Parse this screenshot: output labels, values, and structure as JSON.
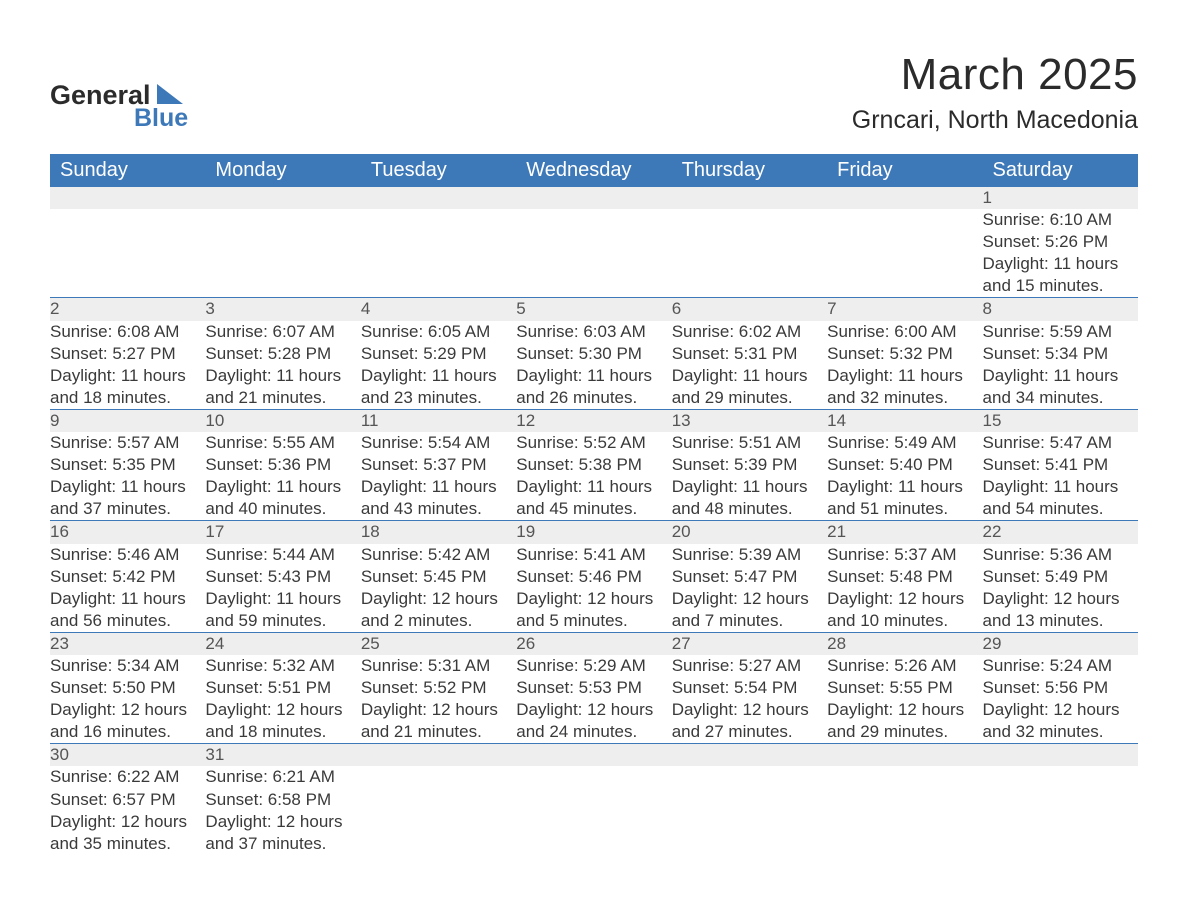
{
  "brand": {
    "text_general": "General",
    "text_blue": "Blue",
    "color_general": "#2b2b2b",
    "color_blue": "#3d78b8"
  },
  "header": {
    "title": "March 2025",
    "subtitle": "Grncari, North Macedonia"
  },
  "calendar": {
    "header_bg": "#3d78b8",
    "header_fg": "#ffffff",
    "daynum_bg": "#eeeeee",
    "rule_color": "#3d78b8",
    "columns": [
      "Sunday",
      "Monday",
      "Tuesday",
      "Wednesday",
      "Thursday",
      "Friday",
      "Saturday"
    ],
    "weeks": [
      {
        "nums": [
          "",
          "",
          "",
          "",
          "",
          "",
          "1"
        ],
        "cells": [
          "",
          "",
          "",
          "",
          "",
          "",
          "Sunrise: 6:10 AM\nSunset: 5:26 PM\nDaylight: 11 hours and 15 minutes."
        ]
      },
      {
        "nums": [
          "2",
          "3",
          "4",
          "5",
          "6",
          "7",
          "8"
        ],
        "cells": [
          "Sunrise: 6:08 AM\nSunset: 5:27 PM\nDaylight: 11 hours and 18 minutes.",
          "Sunrise: 6:07 AM\nSunset: 5:28 PM\nDaylight: 11 hours and 21 minutes.",
          "Sunrise: 6:05 AM\nSunset: 5:29 PM\nDaylight: 11 hours and 23 minutes.",
          "Sunrise: 6:03 AM\nSunset: 5:30 PM\nDaylight: 11 hours and 26 minutes.",
          "Sunrise: 6:02 AM\nSunset: 5:31 PM\nDaylight: 11 hours and 29 minutes.",
          "Sunrise: 6:00 AM\nSunset: 5:32 PM\nDaylight: 11 hours and 32 minutes.",
          "Sunrise: 5:59 AM\nSunset: 5:34 PM\nDaylight: 11 hours and 34 minutes."
        ]
      },
      {
        "nums": [
          "9",
          "10",
          "11",
          "12",
          "13",
          "14",
          "15"
        ],
        "cells": [
          "Sunrise: 5:57 AM\nSunset: 5:35 PM\nDaylight: 11 hours and 37 minutes.",
          "Sunrise: 5:55 AM\nSunset: 5:36 PM\nDaylight: 11 hours and 40 minutes.",
          "Sunrise: 5:54 AM\nSunset: 5:37 PM\nDaylight: 11 hours and 43 minutes.",
          "Sunrise: 5:52 AM\nSunset: 5:38 PM\nDaylight: 11 hours and 45 minutes.",
          "Sunrise: 5:51 AM\nSunset: 5:39 PM\nDaylight: 11 hours and 48 minutes.",
          "Sunrise: 5:49 AM\nSunset: 5:40 PM\nDaylight: 11 hours and 51 minutes.",
          "Sunrise: 5:47 AM\nSunset: 5:41 PM\nDaylight: 11 hours and 54 minutes."
        ]
      },
      {
        "nums": [
          "16",
          "17",
          "18",
          "19",
          "20",
          "21",
          "22"
        ],
        "cells": [
          "Sunrise: 5:46 AM\nSunset: 5:42 PM\nDaylight: 11 hours and 56 minutes.",
          "Sunrise: 5:44 AM\nSunset: 5:43 PM\nDaylight: 11 hours and 59 minutes.",
          "Sunrise: 5:42 AM\nSunset: 5:45 PM\nDaylight: 12 hours and 2 minutes.",
          "Sunrise: 5:41 AM\nSunset: 5:46 PM\nDaylight: 12 hours and 5 minutes.",
          "Sunrise: 5:39 AM\nSunset: 5:47 PM\nDaylight: 12 hours and 7 minutes.",
          "Sunrise: 5:37 AM\nSunset: 5:48 PM\nDaylight: 12 hours and 10 minutes.",
          "Sunrise: 5:36 AM\nSunset: 5:49 PM\nDaylight: 12 hours and 13 minutes."
        ]
      },
      {
        "nums": [
          "23",
          "24",
          "25",
          "26",
          "27",
          "28",
          "29"
        ],
        "cells": [
          "Sunrise: 5:34 AM\nSunset: 5:50 PM\nDaylight: 12 hours and 16 minutes.",
          "Sunrise: 5:32 AM\nSunset: 5:51 PM\nDaylight: 12 hours and 18 minutes.",
          "Sunrise: 5:31 AM\nSunset: 5:52 PM\nDaylight: 12 hours and 21 minutes.",
          "Sunrise: 5:29 AM\nSunset: 5:53 PM\nDaylight: 12 hours and 24 minutes.",
          "Sunrise: 5:27 AM\nSunset: 5:54 PM\nDaylight: 12 hours and 27 minutes.",
          "Sunrise: 5:26 AM\nSunset: 5:55 PM\nDaylight: 12 hours and 29 minutes.",
          "Sunrise: 5:24 AM\nSunset: 5:56 PM\nDaylight: 12 hours and 32 minutes."
        ]
      },
      {
        "nums": [
          "30",
          "31",
          "",
          "",
          "",
          "",
          ""
        ],
        "cells": [
          "Sunrise: 6:22 AM\nSunset: 6:57 PM\nDaylight: 12 hours and 35 minutes.",
          "Sunrise: 6:21 AM\nSunset: 6:58 PM\nDaylight: 12 hours and 37 minutes.",
          "",
          "",
          "",
          "",
          ""
        ]
      }
    ]
  }
}
